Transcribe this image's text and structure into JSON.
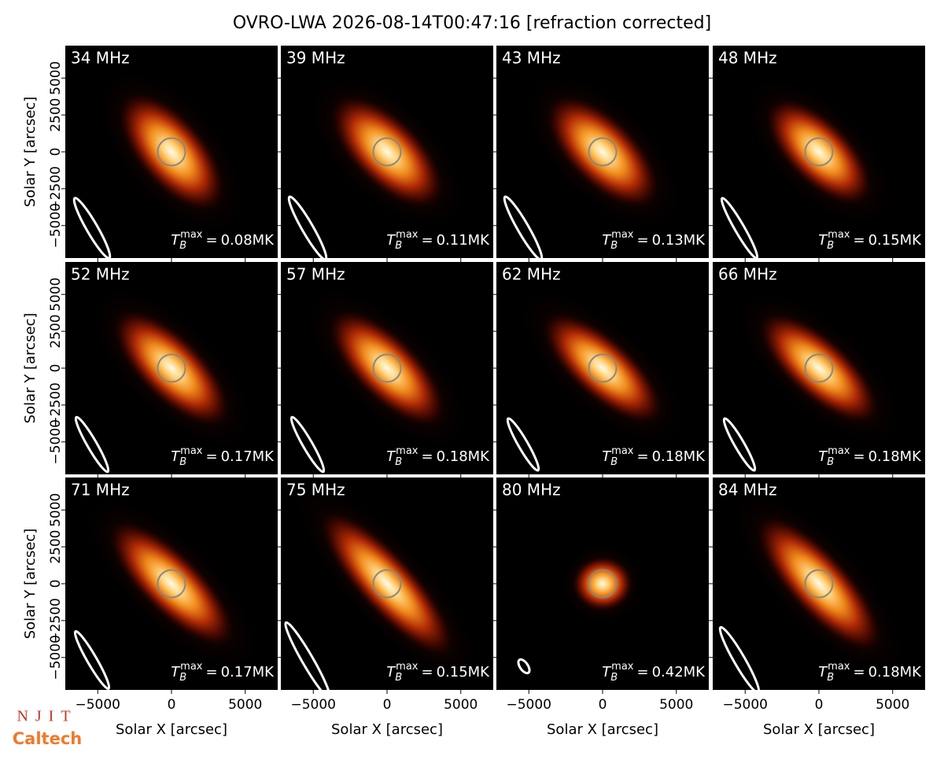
{
  "chart_data": {
    "type": "image",
    "title": "OVRO-LWA 2026-08-14T00:47:16 [refraction corrected]",
    "x_label": "Solar X [arcsec]",
    "y_label": "Solar Y [arcsec]",
    "xlim": [
      -7200,
      7200
    ],
    "ylim": [
      -7200,
      7200
    ],
    "xticks": [
      {
        "value": -5000,
        "label": "−5000"
      },
      0,
      5000
    ],
    "yticks": [
      {
        "value": -5000,
        "label": "−5000"
      },
      {
        "value": -2500,
        "label": "−2500"
      },
      0,
      2500,
      5000
    ],
    "tmax_symbol": {
      "base": "T",
      "sub": "B",
      "sup": "max",
      "eq": "="
    },
    "panels": [
      {
        "label": "34 MHz",
        "tmax_label": "0.08MK"
      },
      {
        "label": "39 MHz",
        "tmax_label": "0.11MK"
      },
      {
        "label": "43 MHz",
        "tmax_label": "0.13MK"
      },
      {
        "label": "48 MHz",
        "tmax_label": "0.15MK"
      },
      {
        "label": "52 MHz",
        "tmax_label": "0.17MK"
      },
      {
        "label": "57 MHz",
        "tmax_label": "0.18MK"
      },
      {
        "label": "62 MHz",
        "tmax_label": "0.18MK"
      },
      {
        "label": "66 MHz",
        "tmax_label": "0.18MK"
      },
      {
        "label": "71 MHz",
        "tmax_label": "0.17MK"
      },
      {
        "label": "75 MHz",
        "tmax_label": "0.15MK"
      },
      {
        "label": "80 MHz",
        "tmax_label": "0.42MK"
      },
      {
        "label": "84 MHz",
        "tmax_label": "0.18MK"
      }
    ],
    "logos": [
      "NJIT",
      "Caltech"
    ]
  }
}
